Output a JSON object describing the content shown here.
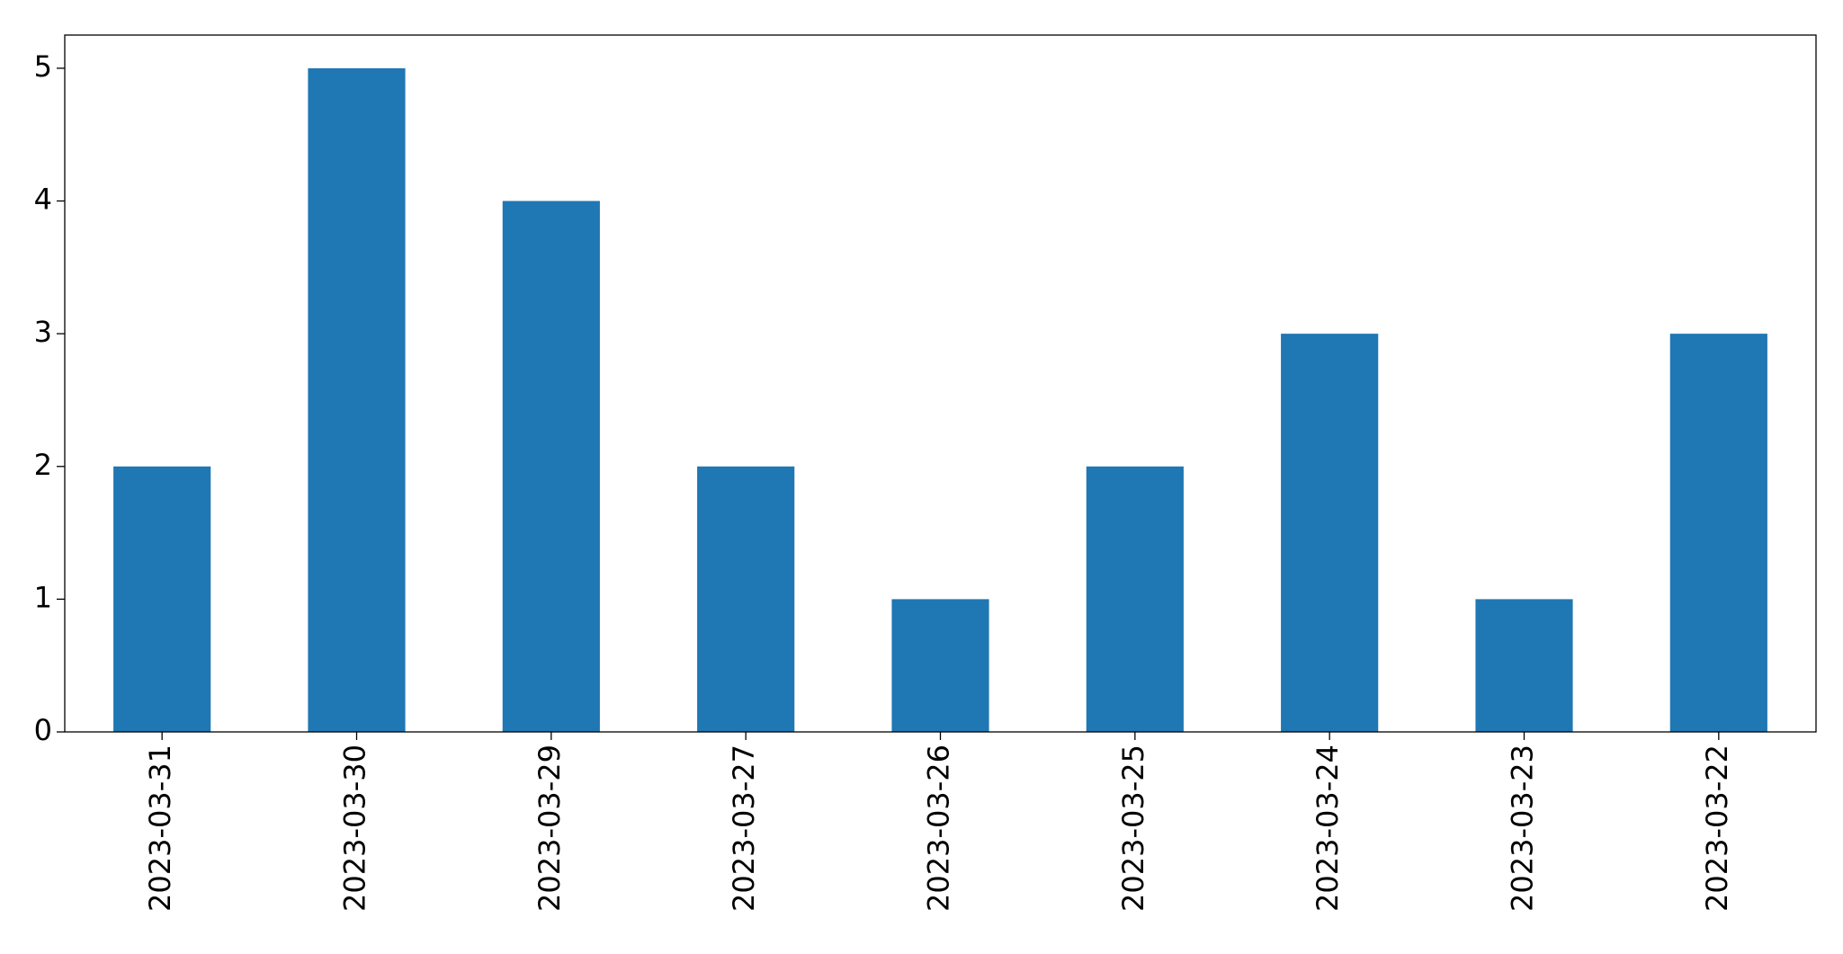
{
  "chart_data": {
    "type": "bar",
    "categories": [
      "2023-03-31",
      "2023-03-30",
      "2023-03-29",
      "2023-03-27",
      "2023-03-26",
      "2023-03-25",
      "2023-03-24",
      "2023-03-23",
      "2023-03-22"
    ],
    "values": [
      2,
      5,
      4,
      2,
      1,
      2,
      3,
      1,
      3
    ],
    "color": "#1f77b4",
    "ylim": [
      0,
      5.25
    ],
    "yticks": [
      0,
      1,
      2,
      3,
      4,
      5
    ],
    "grid": false
  }
}
